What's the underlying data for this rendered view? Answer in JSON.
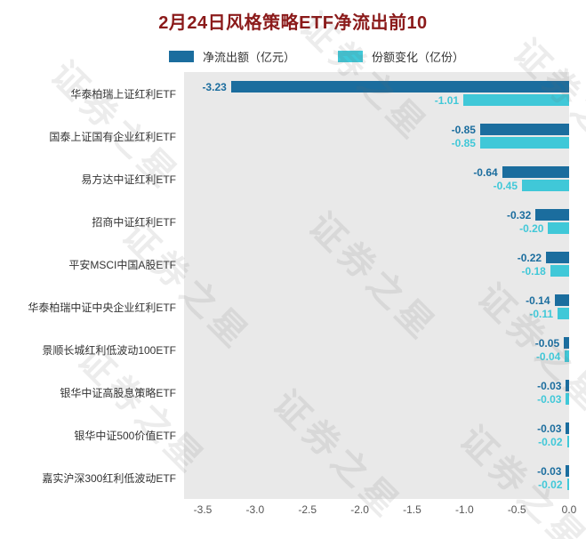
{
  "title": "2月24日风格策略ETF净流出前10",
  "watermark": "证券之星",
  "chart_data": {
    "type": "bar",
    "orientation": "horizontal",
    "title": "2月24日风格策略ETF净流出前10",
    "categories": [
      "华泰柏瑞上证红利ETF",
      "国泰上证国有企业红利ETF",
      "易方达中证红利ETF",
      "招商中证红利ETF",
      "平安MSCI中国A股ETF",
      "华泰柏瑞中证中央企业红利ETF",
      "景顺长城红利低波动100ETF",
      "银华中证高股息策略ETF",
      "银华中证500价值ETF",
      "嘉实沪深300红利低波动ETF"
    ],
    "series": [
      {
        "name": "净流出额（亿元）",
        "color": "#1b6d9e",
        "values": [
          -3.23,
          -0.85,
          -0.64,
          -0.32,
          -0.22,
          -0.14,
          -0.05,
          -0.03,
          -0.03,
          -0.03
        ],
        "labels": [
          "-3.23",
          "-0.85",
          "-0.64",
          "-0.32",
          "-0.22",
          "-0.14",
          "-0.05",
          "-0.03",
          "-0.03",
          "-0.03"
        ]
      },
      {
        "name": "份额变化（亿份）",
        "color": "#40c8d8",
        "values": [
          -1.01,
          -0.85,
          -0.45,
          -0.2,
          -0.18,
          -0.11,
          -0.04,
          -0.03,
          -0.02,
          -0.02
        ],
        "labels": [
          "-1.01",
          "-0.85",
          "-0.45",
          "-0.20",
          "-0.18",
          "-0.11",
          "-0.04",
          "-0.03",
          "-0.02",
          "-0.02"
        ]
      }
    ],
    "xlim": [
      -3.7,
      0
    ],
    "x_ticks": [
      "-3.5",
      "-3.0",
      "-2.5",
      "-2.0",
      "-1.5",
      "-1.0",
      "-0.5",
      "0.0"
    ],
    "grid": false,
    "legend_position": "top",
    "plot_background": "#e9e9e9"
  }
}
